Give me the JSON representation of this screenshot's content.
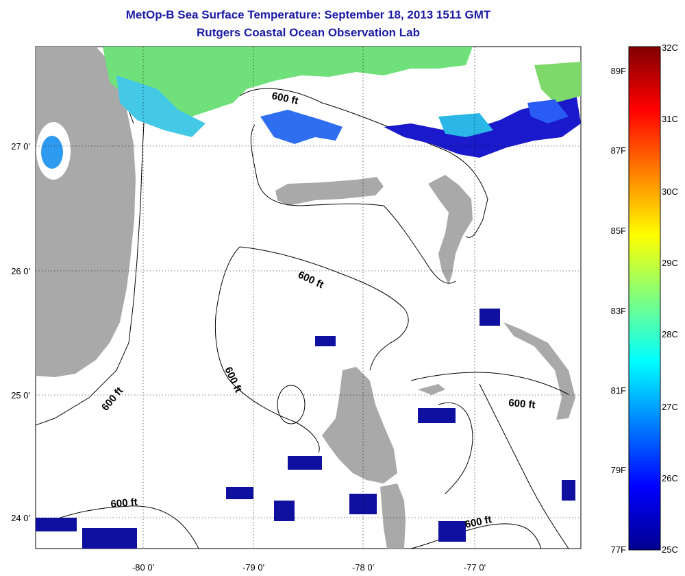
{
  "title": {
    "line1": "MetOp-B Sea Surface Temperature:  September 18, 2013 1511 GMT",
    "line2": "Rutgers Coastal Ocean Observation Lab"
  },
  "map": {
    "lon_labels": [
      "-80 0'",
      "-79 0'",
      "-78 0'",
      "-77 0'"
    ],
    "lat_labels": [
      "27 0'",
      "26 0'",
      "25 0'",
      "24 0'"
    ],
    "contour_labels": [
      "600 ft",
      "600 ft",
      "600 ft",
      "600 ft",
      "600 ft",
      "600 ft",
      "600 ft"
    ],
    "colors": {
      "land": "#a9a9a9",
      "water_none": "#ffffff"
    }
  },
  "colorbar": {
    "celsius": [
      "32C",
      "31C",
      "30C",
      "29C",
      "28C",
      "27C",
      "26C",
      "25C"
    ],
    "fahrenheit": [
      "89F",
      "87F",
      "85F",
      "83F",
      "81F",
      "79F",
      "77F"
    ]
  }
}
